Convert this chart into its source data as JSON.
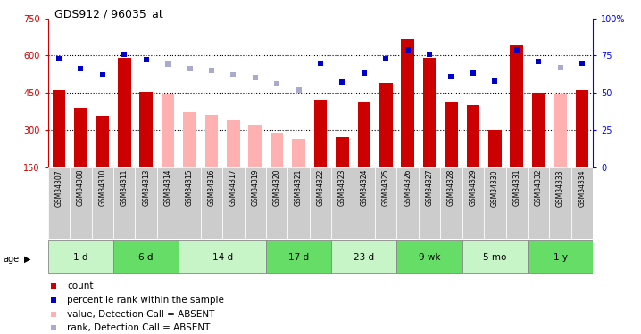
{
  "title": "GDS912 / 96035_at",
  "samples": [
    "GSM34307",
    "GSM34308",
    "GSM34310",
    "GSM34311",
    "GSM34313",
    "GSM34314",
    "GSM34315",
    "GSM34316",
    "GSM34317",
    "GSM34319",
    "GSM34320",
    "GSM34321",
    "GSM34322",
    "GSM34323",
    "GSM34324",
    "GSM34325",
    "GSM34326",
    "GSM34327",
    "GSM34328",
    "GSM34329",
    "GSM34330",
    "GSM34331",
    "GSM34332",
    "GSM34333",
    "GSM34334"
  ],
  "count_values": [
    460,
    390,
    355,
    590,
    455,
    null,
    null,
    null,
    null,
    null,
    null,
    null,
    420,
    270,
    415,
    490,
    665,
    590,
    415,
    400,
    300,
    640,
    450,
    null,
    460
  ],
  "count_absent": [
    null,
    null,
    null,
    null,
    null,
    445,
    370,
    360,
    340,
    320,
    290,
    265,
    null,
    null,
    null,
    null,
    null,
    null,
    null,
    null,
    null,
    null,
    null,
    445,
    null
  ],
  "rank_present": [
    73,
    66,
    62,
    76,
    72,
    null,
    null,
    null,
    null,
    null,
    null,
    null,
    70,
    57,
    63,
    73,
    79,
    76,
    61,
    63,
    58,
    79,
    71,
    null,
    70
  ],
  "rank_absent": [
    null,
    null,
    null,
    null,
    null,
    69,
    66,
    65,
    62,
    60,
    56,
    52,
    null,
    null,
    null,
    null,
    null,
    null,
    null,
    null,
    null,
    null,
    null,
    67,
    null
  ],
  "age_groups": [
    {
      "label": "1 d",
      "start": 0,
      "end": 3,
      "color": "#c8f5c8"
    },
    {
      "label": "6 d",
      "start": 3,
      "end": 6,
      "color": "#66dd66"
    },
    {
      "label": "14 d",
      "start": 6,
      "end": 10,
      "color": "#c8f5c8"
    },
    {
      "label": "17 d",
      "start": 10,
      "end": 13,
      "color": "#66dd66"
    },
    {
      "label": "23 d",
      "start": 13,
      "end": 16,
      "color": "#c8f5c8"
    },
    {
      "label": "9 wk",
      "start": 16,
      "end": 19,
      "color": "#66dd66"
    },
    {
      "label": "5 mo",
      "start": 19,
      "end": 22,
      "color": "#c8f5c8"
    },
    {
      "label": "1 y",
      "start": 22,
      "end": 25,
      "color": "#66dd66"
    }
  ],
  "ymin": 150,
  "ymax": 750,
  "yticks_left": [
    150,
    300,
    450,
    600,
    750
  ],
  "yticks_right": [
    0,
    25,
    50,
    75,
    100
  ],
  "color_count": "#cc0000",
  "color_count_absent": "#ffb0b0",
  "color_rank": "#0000cc",
  "color_rank_absent": "#aaaacc",
  "legend_items": [
    {
      "color": "#cc0000",
      "marker": "s",
      "label": "count"
    },
    {
      "color": "#0000cc",
      "marker": "s",
      "label": "percentile rank within the sample"
    },
    {
      "color": "#ffb0b0",
      "marker": "s",
      "label": "value, Detection Call = ABSENT"
    },
    {
      "color": "#aaaacc",
      "marker": "s",
      "label": "rank, Detection Call = ABSENT"
    }
  ]
}
